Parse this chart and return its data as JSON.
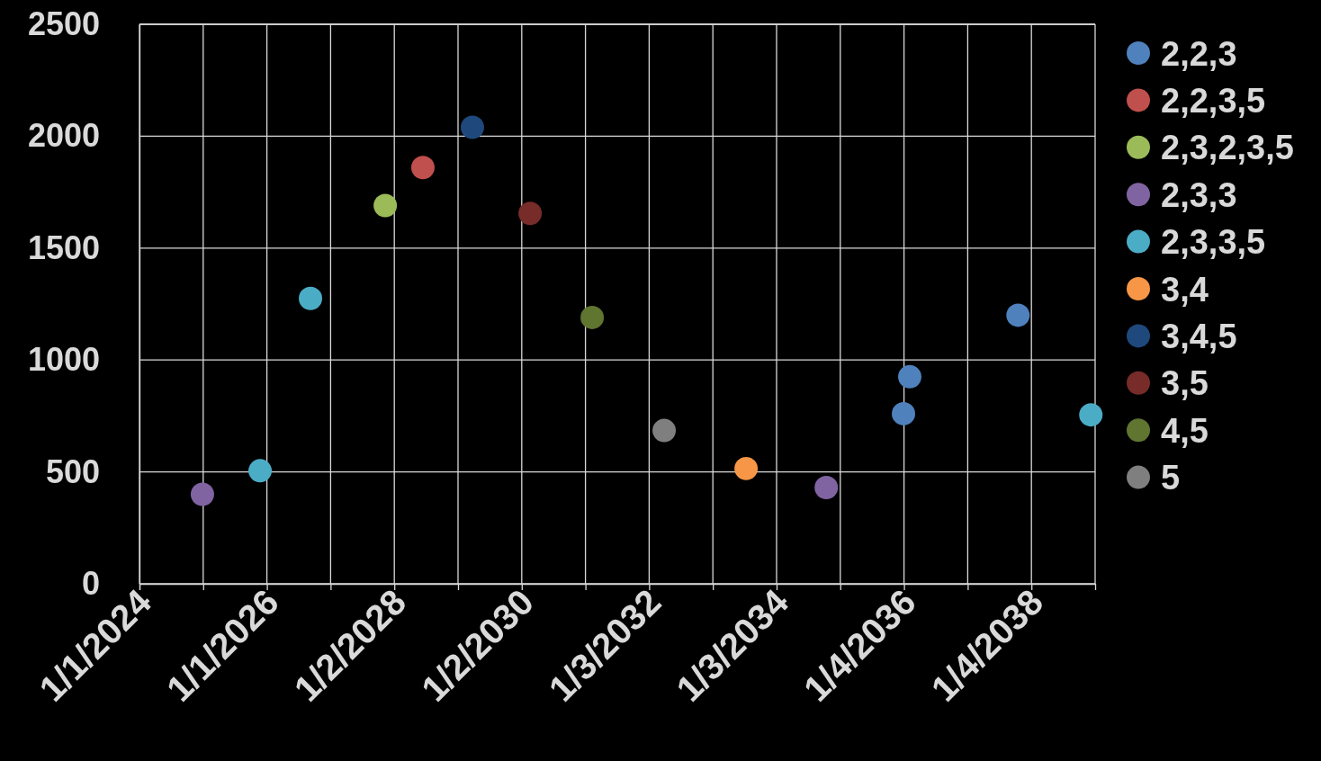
{
  "chart_data": {
    "type": "scatter",
    "xlim": [
      "2024-01-01",
      "2039-01-04T12:00"
    ],
    "xticks": [
      {
        "value": "2024-01-01",
        "label": "1/1/2024"
      },
      {
        "value": "2024-12-31T12:00",
        "label": null
      },
      {
        "value": "2026-01-01",
        "label": "1/1/2026"
      },
      {
        "value": "2027-01-01T12:00",
        "label": null
      },
      {
        "value": "2028-01-02",
        "label": "1/2/2028"
      },
      {
        "value": "2029-01-01T12:00",
        "label": null
      },
      {
        "value": "2030-01-02",
        "label": "1/2/2030"
      },
      {
        "value": "2031-01-02T12:00",
        "label": null
      },
      {
        "value": "2032-01-03",
        "label": "1/3/2032"
      },
      {
        "value": "2033-01-02T12:00",
        "label": null
      },
      {
        "value": "2034-01-03",
        "label": "1/3/2034"
      },
      {
        "value": "2035-01-03T12:00",
        "label": null
      },
      {
        "value": "2036-01-04",
        "label": "1/4/2036"
      },
      {
        "value": "2037-01-03T12:00",
        "label": null
      },
      {
        "value": "2038-01-04",
        "label": "1/4/2038"
      }
    ],
    "ylim": [
      0,
      2500
    ],
    "yticks": [
      0,
      500,
      1000,
      1500,
      2000,
      2500
    ],
    "grid": true,
    "legend": "right",
    "marker": "circle",
    "series": [
      {
        "name": "2,2,3",
        "color": "#4f81bd",
        "x": [
          "2036-01-01",
          "2036-02-06",
          "2037-10-19"
        ],
        "values": [
          760,
          925,
          1200
        ]
      },
      {
        "name": "2,2,3,5",
        "color": "#c0504d",
        "x": [
          "2028-06-14"
        ],
        "values": [
          1860
        ]
      },
      {
        "name": "2,3,2,3,5",
        "color": "#9bbb59",
        "x": [
          "2027-11-11"
        ],
        "values": [
          1690
        ]
      },
      {
        "name": "2,3,3",
        "color": "#8064a2",
        "x": [
          "2024-12-27",
          "2034-10-15"
        ],
        "values": [
          400,
          430
        ]
      },
      {
        "name": "2,3,3,5",
        "color": "#4bacc6",
        "x": [
          "2025-11-23",
          "2026-09-08",
          "2038-12-11"
        ],
        "values": [
          505,
          1275,
          755
        ]
      },
      {
        "name": "3,4",
        "color": "#f79646",
        "x": [
          "2033-07-12"
        ],
        "values": [
          515
        ]
      },
      {
        "name": "3,4,5",
        "color": "#1f497d",
        "x": [
          "2029-03-25"
        ],
        "values": [
          2040
        ]
      },
      {
        "name": "3,5",
        "color": "#772c2a",
        "x": [
          "2030-02-19"
        ],
        "values": [
          1655
        ]
      },
      {
        "name": "4,5",
        "color": "#5f7530",
        "x": [
          "2031-02-10"
        ],
        "values": [
          1190
        ]
      },
      {
        "name": "5",
        "color": "#7f7f7f",
        "x": [
          "2032-03-29"
        ],
        "values": [
          685
        ]
      }
    ]
  }
}
